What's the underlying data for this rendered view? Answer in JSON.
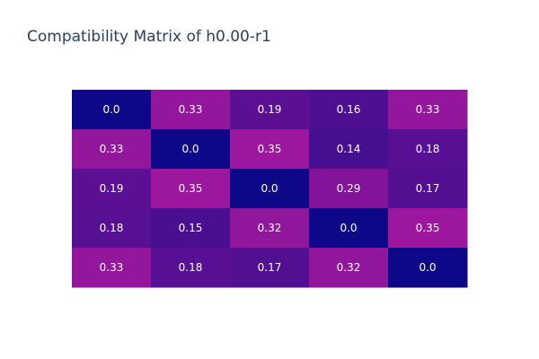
{
  "chart_data": {
    "type": "heatmap",
    "title": "Compatibility Matrix of h0.00-r1",
    "rows": 5,
    "cols": 5,
    "z": [
      [
        0.0,
        0.33,
        0.19,
        0.16,
        0.33
      ],
      [
        0.33,
        0.0,
        0.35,
        0.14,
        0.18
      ],
      [
        0.19,
        0.35,
        0.0,
        0.29,
        0.17
      ],
      [
        0.18,
        0.15,
        0.32,
        0.0,
        0.35
      ],
      [
        0.33,
        0.18,
        0.17,
        0.32,
        0.0
      ]
    ],
    "labels": [
      [
        "0.0",
        "0.33",
        "0.19",
        "0.16",
        "0.33"
      ],
      [
        "0.33",
        "0.0",
        "0.35",
        "0.14",
        "0.18"
      ],
      [
        "0.19",
        "0.35",
        "0.0",
        "0.29",
        "0.17"
      ],
      [
        "0.18",
        "0.15",
        "0.32",
        "0.0",
        "0.35"
      ],
      [
        "0.33",
        "0.18",
        "0.17",
        "0.32",
        "0.0"
      ]
    ],
    "colorscale": {
      "low": "#0d0887",
      "high": "#9c179e"
    },
    "zrange": [
      0.0,
      0.35
    ],
    "axes_visible": false,
    "colorbar": false
  }
}
